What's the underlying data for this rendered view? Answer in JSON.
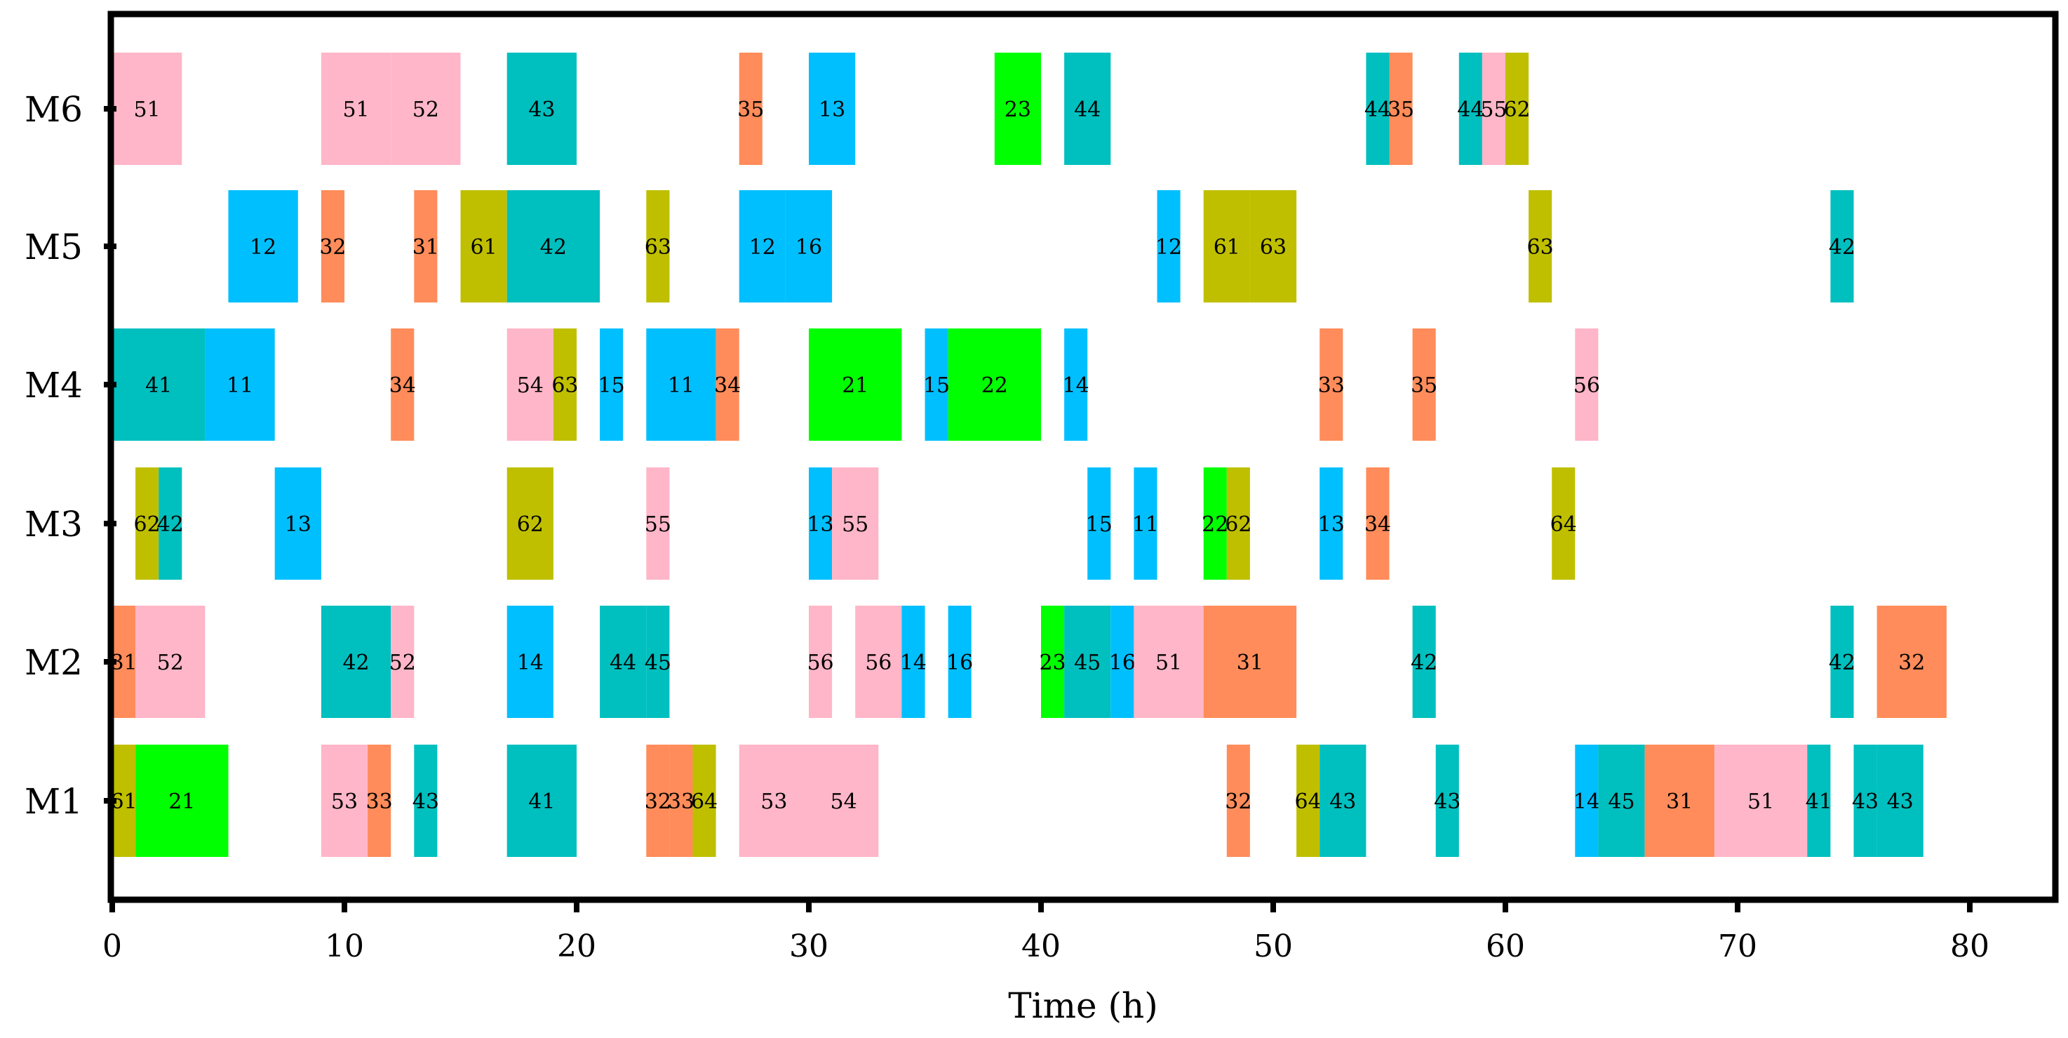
{
  "chart_data": {
    "type": "gantt",
    "title": "",
    "xlabel": "Time (h)",
    "ylabel": "",
    "xlim": [
      0,
      84
    ],
    "xticks": [
      0,
      10,
      20,
      30,
      40,
      50,
      60,
      70,
      80
    ],
    "machines": [
      "M1",
      "M2",
      "M3",
      "M4",
      "M5",
      "M6"
    ],
    "colors": {
      "1": "#00BFFF",
      "2": "#00FF00",
      "3": "#FF8C5A",
      "4": "#00BFBF",
      "5": "#FFB6C8",
      "6": "#BFBF00"
    },
    "operations": {
      "M6": [
        {
          "job": 5,
          "label": "51",
          "start": 0,
          "end": 3
        },
        {
          "job": 5,
          "label": "51",
          "start": 9,
          "end": 12
        },
        {
          "job": 5,
          "label": "52",
          "start": 12,
          "end": 15
        },
        {
          "job": 4,
          "label": "43",
          "start": 17,
          "end": 20
        },
        {
          "job": 3,
          "label": "35",
          "start": 27,
          "end": 28
        },
        {
          "job": 1,
          "label": "13",
          "start": 30,
          "end": 32
        },
        {
          "job": 2,
          "label": "23",
          "start": 38,
          "end": 40
        },
        {
          "job": 4,
          "label": "44",
          "start": 41,
          "end": 43
        },
        {
          "job": 4,
          "label": "44",
          "start": 54,
          "end": 55
        },
        {
          "job": 3,
          "label": "35",
          "start": 55,
          "end": 56
        },
        {
          "job": 4,
          "label": "44",
          "start": 58,
          "end": 59
        },
        {
          "job": 5,
          "label": "55",
          "start": 59,
          "end": 60
        },
        {
          "job": 6,
          "label": "62",
          "start": 60,
          "end": 61
        }
      ],
      "M5": [
        {
          "job": 1,
          "label": "12",
          "start": 5,
          "end": 8
        },
        {
          "job": 3,
          "label": "32",
          "start": 9,
          "end": 10
        },
        {
          "job": 3,
          "label": "31",
          "start": 13,
          "end": 14
        },
        {
          "job": 6,
          "label": "61",
          "start": 15,
          "end": 17
        },
        {
          "job": 4,
          "label": "42",
          "start": 17,
          "end": 21
        },
        {
          "job": 6,
          "label": "63",
          "start": 23,
          "end": 24
        },
        {
          "job": 1,
          "label": "12",
          "start": 27,
          "end": 29
        },
        {
          "job": 1,
          "label": "16",
          "start": 29,
          "end": 31
        },
        {
          "job": 1,
          "label": "12",
          "start": 45,
          "end": 46
        },
        {
          "job": 6,
          "label": "61",
          "start": 47,
          "end": 49
        },
        {
          "job": 6,
          "label": "63",
          "start": 49,
          "end": 51
        },
        {
          "job": 6,
          "label": "63",
          "start": 61,
          "end": 62
        },
        {
          "job": 4,
          "label": "42",
          "start": 74,
          "end": 75
        }
      ],
      "M4": [
        {
          "job": 4,
          "label": "41",
          "start": 0,
          "end": 4
        },
        {
          "job": 1,
          "label": "11",
          "start": 4,
          "end": 7
        },
        {
          "job": 3,
          "label": "34",
          "start": 12,
          "end": 13
        },
        {
          "job": 5,
          "label": "54",
          "start": 17,
          "end": 19
        },
        {
          "job": 6,
          "label": "63",
          "start": 19,
          "end": 20
        },
        {
          "job": 1,
          "label": "15",
          "start": 21,
          "end": 22
        },
        {
          "job": 1,
          "label": "11",
          "start": 23,
          "end": 26
        },
        {
          "job": 3,
          "label": "34",
          "start": 26,
          "end": 27
        },
        {
          "job": 2,
          "label": "21",
          "start": 30,
          "end": 34
        },
        {
          "job": 1,
          "label": "15",
          "start": 35,
          "end": 36
        },
        {
          "job": 2,
          "label": "22",
          "start": 36,
          "end": 40
        },
        {
          "job": 1,
          "label": "14",
          "start": 41,
          "end": 42
        },
        {
          "job": 3,
          "label": "33",
          "start": 52,
          "end": 53
        },
        {
          "job": 3,
          "label": "35",
          "start": 56,
          "end": 57
        },
        {
          "job": 5,
          "label": "56",
          "start": 63,
          "end": 64
        }
      ],
      "M3": [
        {
          "job": 6,
          "label": "62",
          "start": 1,
          "end": 2
        },
        {
          "job": 4,
          "label": "42",
          "start": 2,
          "end": 3
        },
        {
          "job": 1,
          "label": "13",
          "start": 7,
          "end": 9
        },
        {
          "job": 6,
          "label": "62",
          "start": 17,
          "end": 19
        },
        {
          "job": 5,
          "label": "55",
          "start": 23,
          "end": 24
        },
        {
          "job": 1,
          "label": "13",
          "start": 30,
          "end": 31
        },
        {
          "job": 5,
          "label": "55",
          "start": 31,
          "end": 33
        },
        {
          "job": 1,
          "label": "15",
          "start": 42,
          "end": 43
        },
        {
          "job": 1,
          "label": "11",
          "start": 44,
          "end": 45
        },
        {
          "job": 2,
          "label": "22",
          "start": 47,
          "end": 48
        },
        {
          "job": 6,
          "label": "62",
          "start": 48,
          "end": 49
        },
        {
          "job": 1,
          "label": "13",
          "start": 52,
          "end": 53
        },
        {
          "job": 3,
          "label": "34",
          "start": 54,
          "end": 55
        },
        {
          "job": 6,
          "label": "64",
          "start": 62,
          "end": 63
        }
      ],
      "M2": [
        {
          "job": 3,
          "label": "31",
          "start": 0,
          "end": 1
        },
        {
          "job": 5,
          "label": "52",
          "start": 1,
          "end": 4
        },
        {
          "job": 4,
          "label": "42",
          "start": 9,
          "end": 12
        },
        {
          "job": 5,
          "label": "52",
          "start": 12,
          "end": 13
        },
        {
          "job": 1,
          "label": "14",
          "start": 17,
          "end": 19
        },
        {
          "job": 4,
          "label": "44",
          "start": 21,
          "end": 23
        },
        {
          "job": 4,
          "label": "45",
          "start": 23,
          "end": 24
        },
        {
          "job": 5,
          "label": "56",
          "start": 30,
          "end": 31
        },
        {
          "job": 5,
          "label": "56",
          "start": 32,
          "end": 34
        },
        {
          "job": 1,
          "label": "14",
          "start": 34,
          "end": 35
        },
        {
          "job": 1,
          "label": "16",
          "start": 36,
          "end": 37
        },
        {
          "job": 2,
          "label": "23",
          "start": 40,
          "end": 41
        },
        {
          "job": 4,
          "label": "45",
          "start": 41,
          "end": 43
        },
        {
          "job": 1,
          "label": "16",
          "start": 43,
          "end": 44
        },
        {
          "job": 5,
          "label": "51",
          "start": 44,
          "end": 47
        },
        {
          "job": 3,
          "label": "31",
          "start": 47,
          "end": 51
        },
        {
          "job": 4,
          "label": "42",
          "start": 56,
          "end": 57
        },
        {
          "job": 4,
          "label": "42",
          "start": 74,
          "end": 75
        },
        {
          "job": 3,
          "label": "32",
          "start": 76,
          "end": 79
        }
      ],
      "M1": [
        {
          "job": 6,
          "label": "61",
          "start": 0,
          "end": 1
        },
        {
          "job": 2,
          "label": "21",
          "start": 1,
          "end": 5
        },
        {
          "job": 5,
          "label": "53",
          "start": 9,
          "end": 11
        },
        {
          "job": 3,
          "label": "33",
          "start": 11,
          "end": 12
        },
        {
          "job": 4,
          "label": "43",
          "start": 13,
          "end": 14
        },
        {
          "job": 4,
          "label": "41",
          "start": 17,
          "end": 20
        },
        {
          "job": 3,
          "label": "32",
          "start": 23,
          "end": 24
        },
        {
          "job": 3,
          "label": "33",
          "start": 24,
          "end": 25
        },
        {
          "job": 6,
          "label": "64",
          "start": 25,
          "end": 26
        },
        {
          "job": 5,
          "label": "53",
          "start": 27,
          "end": 30
        },
        {
          "job": 5,
          "label": "54",
          "start": 30,
          "end": 33
        },
        {
          "job": 3,
          "label": "32",
          "start": 48,
          "end": 49
        },
        {
          "job": 6,
          "label": "64",
          "start": 51,
          "end": 52
        },
        {
          "job": 4,
          "label": "43",
          "start": 52,
          "end": 54
        },
        {
          "job": 4,
          "label": "43",
          "start": 57,
          "end": 58
        },
        {
          "job": 1,
          "label": "14",
          "start": 63,
          "end": 64
        },
        {
          "job": 4,
          "label": "45",
          "start": 64,
          "end": 66
        },
        {
          "job": 3,
          "label": "31",
          "start": 66,
          "end": 69
        },
        {
          "job": 5,
          "label": "51",
          "start": 69,
          "end": 73
        },
        {
          "job": 4,
          "label": "41",
          "start": 73,
          "end": 74
        },
        {
          "job": 4,
          "label": "43",
          "start": 75,
          "end": 76
        },
        {
          "job": 4,
          "label": "43",
          "start": 76,
          "end": 78
        }
      ]
    }
  }
}
